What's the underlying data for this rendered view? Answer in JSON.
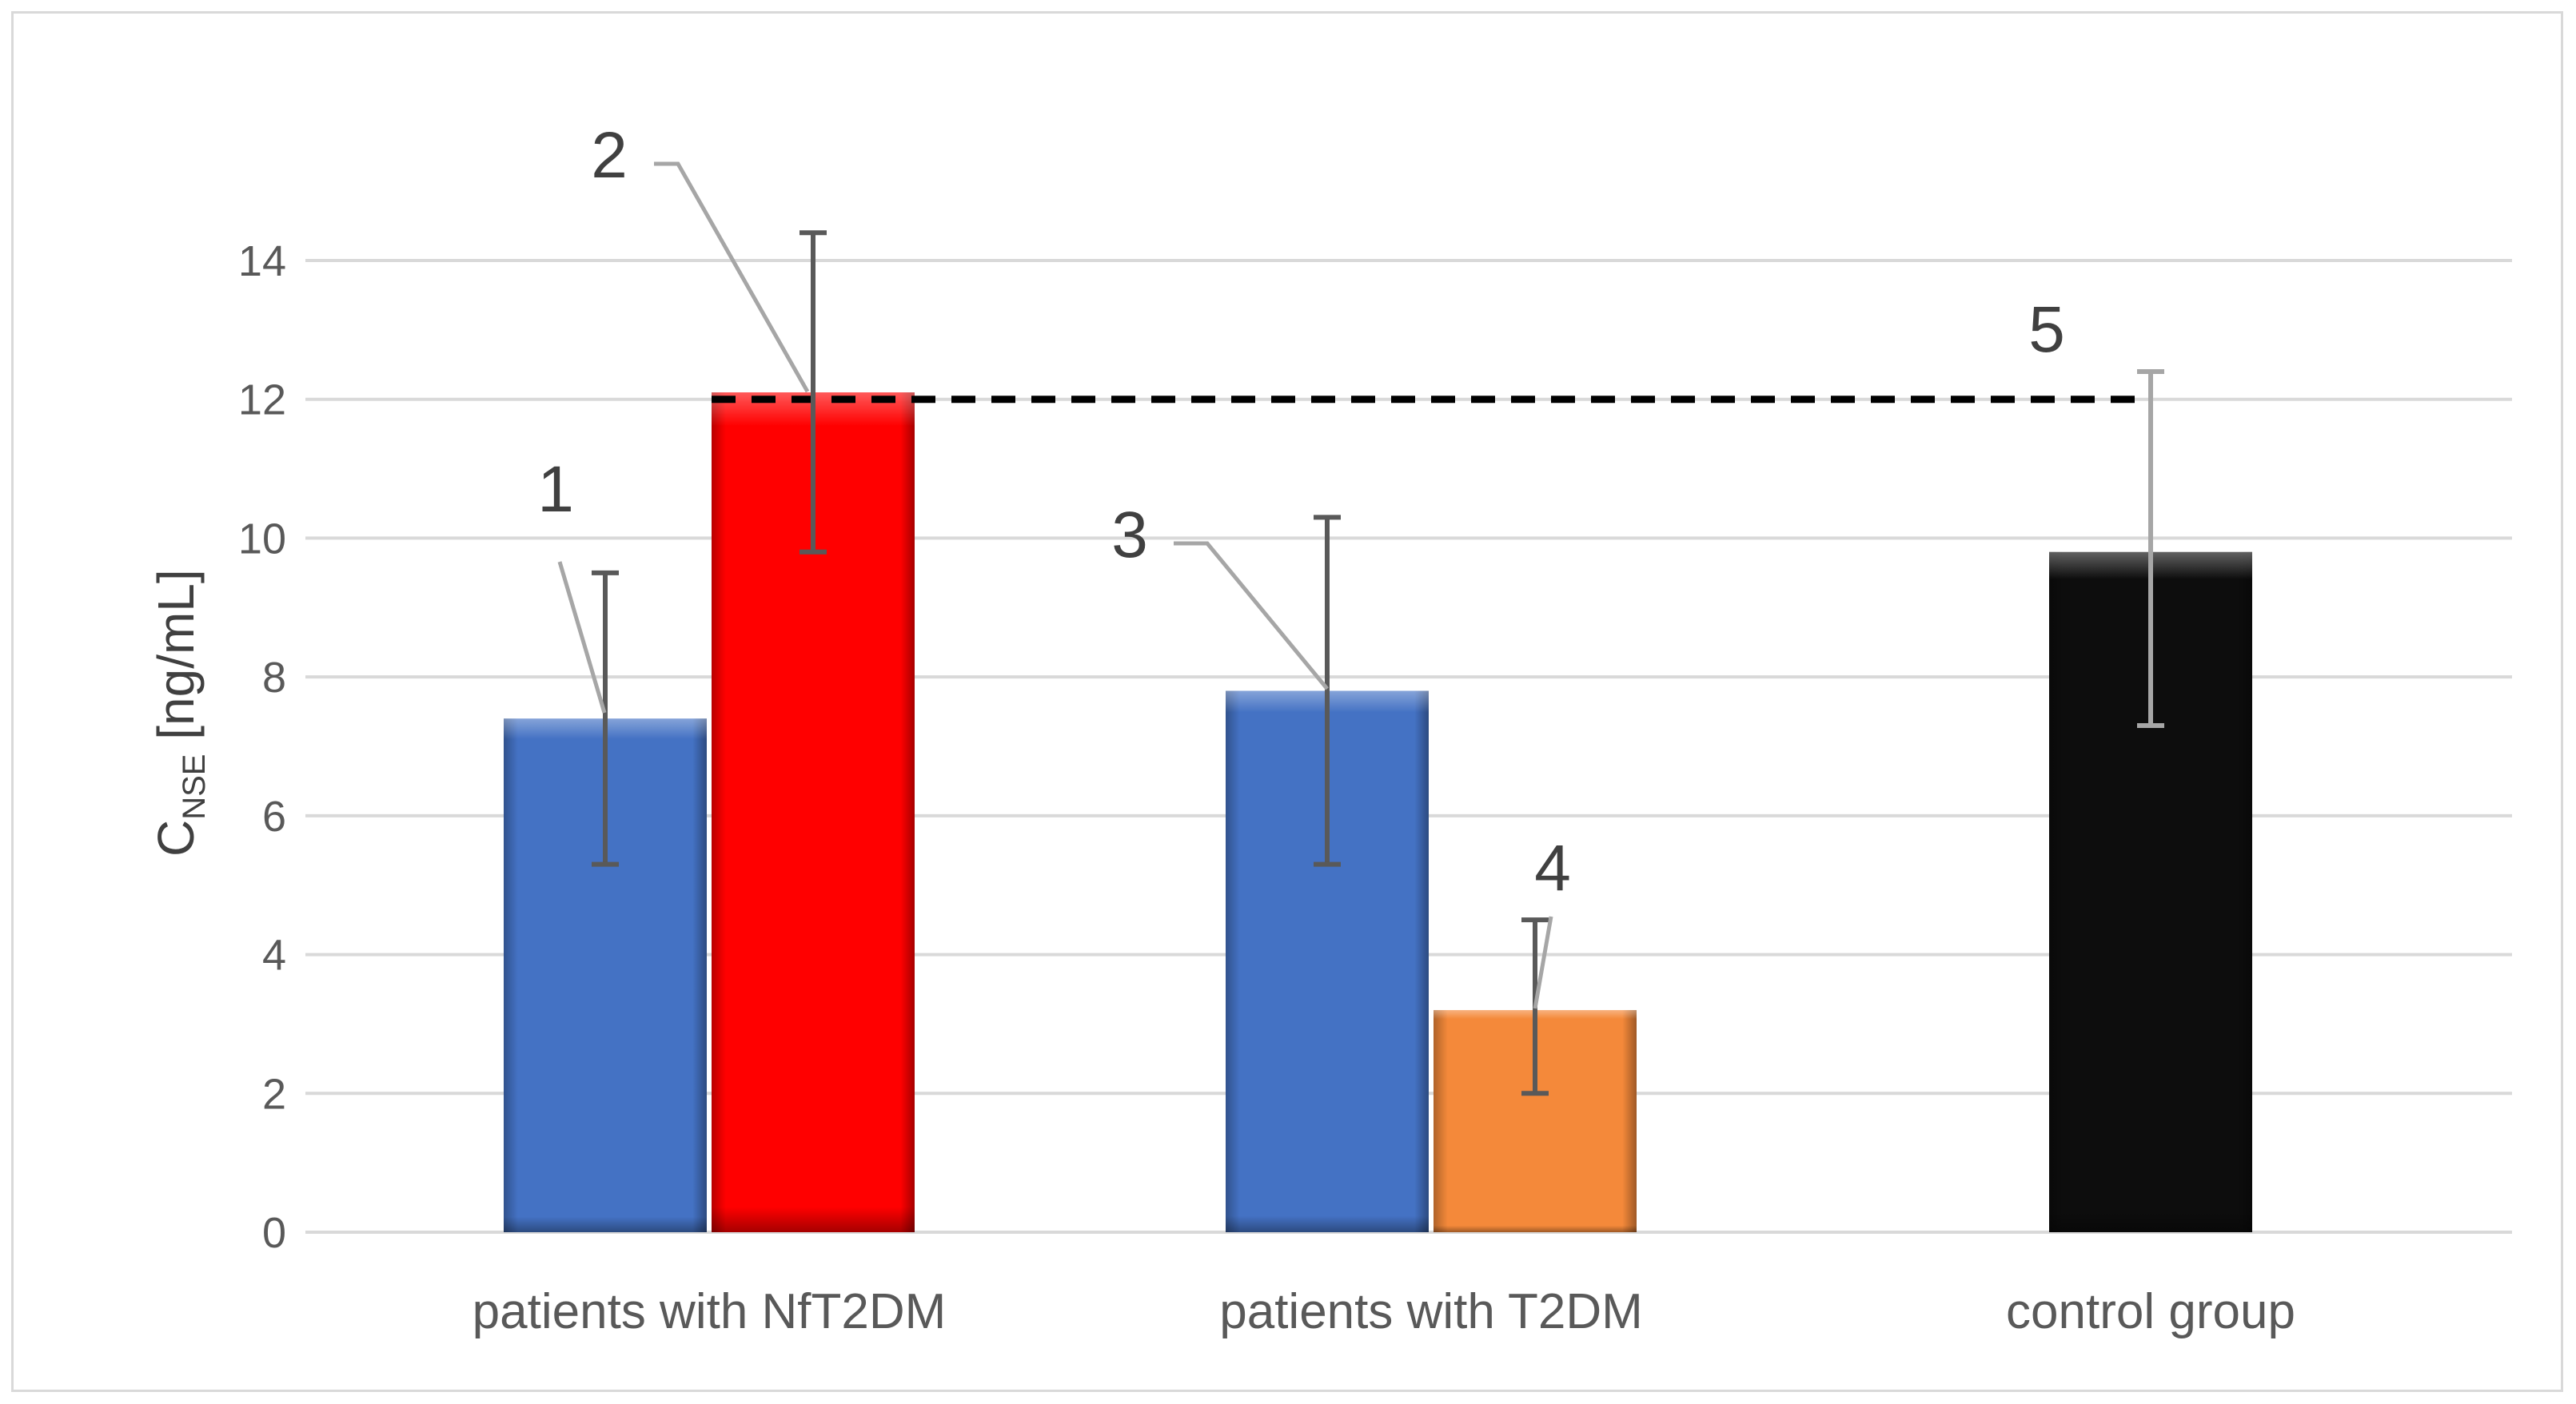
{
  "chart_data": {
    "type": "bar",
    "categories": [
      "patients with NfT2DM",
      "patients with T2DM",
      "control group"
    ],
    "ylabel_main": "C",
    "ylabel_sub": "NSE",
    "ylabel_unit": " [ng/mL]",
    "ylim": [
      0,
      14
    ],
    "yticks": [
      0,
      2,
      4,
      6,
      8,
      10,
      12,
      14
    ],
    "grid": true,
    "bars": [
      {
        "category": 0,
        "slot": 0,
        "value": 7.4,
        "err_low": 5.3,
        "err_high": 9.5,
        "color": "#4472c4",
        "callout": "1"
      },
      {
        "category": 0,
        "slot": 1,
        "value": 12.1,
        "err_low": 9.8,
        "err_high": 14.4,
        "color": "#ff0000",
        "callout": "2"
      },
      {
        "category": 1,
        "slot": 0,
        "value": 7.8,
        "err_low": 5.3,
        "err_high": 10.3,
        "color": "#4472c4",
        "callout": "3"
      },
      {
        "category": 1,
        "slot": 1,
        "value": 3.2,
        "err_low": 2.0,
        "err_high": 4.5,
        "color": "#f4893a",
        "callout": "4"
      },
      {
        "category": 2,
        "slot": 0,
        "value": 9.8,
        "err_low": 7.3,
        "err_high": 12.4,
        "color": "#0d0d0d",
        "callout": "5"
      }
    ],
    "reference_line": {
      "value": 12,
      "style": "dashed",
      "color": "#000000"
    }
  }
}
